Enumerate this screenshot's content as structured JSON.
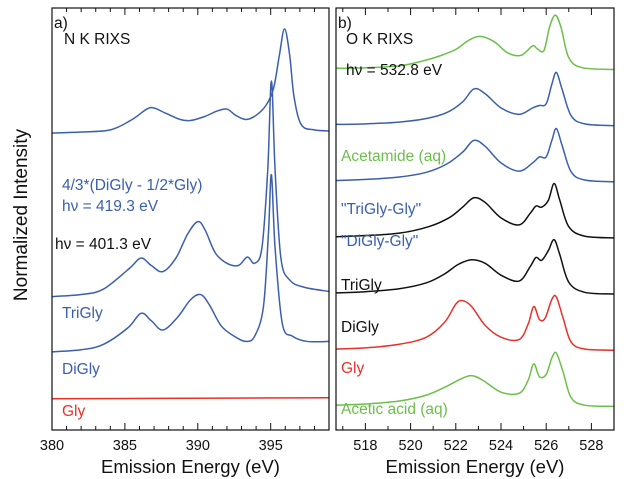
{
  "figure": {
    "ylabel": "Normalized Intensity"
  },
  "chart_data": [
    {
      "type": "line",
      "panel_label": "a)",
      "title_lines": [
        "N K RIXS"
      ],
      "xlabel": "Emission Energy (eV)",
      "xlim": [
        380,
        399
      ],
      "xticks": [
        "380",
        "385",
        "390",
        "395"
      ],
      "xtick_values": [
        380,
        385,
        390,
        395
      ],
      "y_ticks_shown": false,
      "grid": false,
      "series": [
        {
          "name": "4/3*(DiGly - 1/2*Gly)",
          "color": "#3b5fad",
          "excitation": "hν = 419.3 eV",
          "label_lines": [
            "4/3*(DiGly - 1/2*Gly)",
            "hν = 419.3 eV"
          ],
          "baseline": 3.55,
          "points": [
            [
              380,
              3.55
            ],
            [
              382,
              3.56
            ],
            [
              384,
              3.58
            ],
            [
              385.5,
              3.68
            ],
            [
              386.5,
              3.78
            ],
            [
              387,
              3.79
            ],
            [
              387.8,
              3.74
            ],
            [
              388.8,
              3.68
            ],
            [
              389.5,
              3.67
            ],
            [
              390.5,
              3.71
            ],
            [
              391.3,
              3.76
            ],
            [
              392,
              3.78
            ],
            [
              392.6,
              3.72
            ],
            [
              393.3,
              3.68
            ],
            [
              394,
              3.72
            ],
            [
              394.7,
              3.82
            ],
            [
              395.2,
              3.98
            ],
            [
              395.6,
              4.3
            ],
            [
              395.95,
              4.55
            ],
            [
              396.3,
              4.3
            ],
            [
              396.6,
              3.9
            ],
            [
              397.1,
              3.63
            ],
            [
              398,
              3.58
            ],
            [
              399,
              3.57
            ]
          ]
        },
        {
          "name": "TriGly",
          "color": "#3b5fad",
          "label_lines": [
            "TriGly"
          ],
          "excitation_note": "hν = 401.3 eV",
          "baseline": 1.98,
          "points": [
            [
              380,
              1.98
            ],
            [
              382,
              2.0
            ],
            [
              383.5,
              2.05
            ],
            [
              385.3,
              2.25
            ],
            [
              386.1,
              2.35
            ],
            [
              386.8,
              2.28
            ],
            [
              387.6,
              2.22
            ],
            [
              388.5,
              2.35
            ],
            [
              389.3,
              2.58
            ],
            [
              390,
              2.7
            ],
            [
              390.5,
              2.62
            ],
            [
              391.2,
              2.4
            ],
            [
              392,
              2.3
            ],
            [
              392.8,
              2.28
            ],
            [
              393.4,
              2.36
            ],
            [
              393.9,
              2.3
            ],
            [
              394.4,
              2.45
            ],
            [
              394.8,
              3.2
            ],
            [
              395.05,
              4.05
            ],
            [
              395.3,
              3.2
            ],
            [
              395.7,
              2.35
            ],
            [
              396.3,
              2.14
            ],
            [
              397.3,
              2.07
            ],
            [
              399,
              2.03
            ]
          ]
        },
        {
          "name": "DiGly",
          "color": "#3b5fad",
          "label_lines": [
            "DiGly"
          ],
          "baseline": 1.45,
          "points": [
            [
              380,
              1.45
            ],
            [
              382,
              1.47
            ],
            [
              383.5,
              1.52
            ],
            [
              385.2,
              1.68
            ],
            [
              386.1,
              1.82
            ],
            [
              386.8,
              1.75
            ],
            [
              387.6,
              1.66
            ],
            [
              388.6,
              1.78
            ],
            [
              389.5,
              1.95
            ],
            [
              390.2,
              2.0
            ],
            [
              390.8,
              1.9
            ],
            [
              391.6,
              1.7
            ],
            [
              392.5,
              1.6
            ],
            [
              393.3,
              1.55
            ],
            [
              393.9,
              1.6
            ],
            [
              394.5,
              1.88
            ],
            [
              394.85,
              2.6
            ],
            [
              395.05,
              3.15
            ],
            [
              395.3,
              2.45
            ],
            [
              395.8,
              1.72
            ],
            [
              396.5,
              1.6
            ],
            [
              397.5,
              1.55
            ],
            [
              399,
              1.55
            ]
          ]
        },
        {
          "name": "Gly",
          "color": "#e8312a",
          "label_lines": [
            "Gly"
          ],
          "baseline": 1.0,
          "points": [
            [
              380,
              1.0
            ],
            [
              399,
              1.01
            ]
          ]
        }
      ]
    },
    {
      "type": "line",
      "panel_label": "b)",
      "title_lines": [
        "O K RIXS",
        "hν = 532.8 eV"
      ],
      "xlabel": "Emission Energy (eV)",
      "xlim": [
        516.7,
        529
      ],
      "xticks": [
        "518",
        "520",
        "522",
        "524",
        "526",
        "528"
      ],
      "xtick_values": [
        518,
        520,
        522,
        524,
        526,
        528
      ],
      "y_ticks_shown": false,
      "grid": false,
      "series": [
        {
          "name": "Acetamide (aq)",
          "color": "#6cbf4a",
          "label_lines": [
            "Acetamide (aq)"
          ],
          "points": [
            [
              516.7,
              0.1
            ],
            [
              518,
              0.11
            ],
            [
              519.5,
              0.14
            ],
            [
              520.5,
              0.22
            ],
            [
              521.3,
              0.31
            ],
            [
              522,
              0.42
            ],
            [
              522.6,
              0.58
            ],
            [
              523.1,
              0.64
            ],
            [
              523.7,
              0.55
            ],
            [
              524.3,
              0.36
            ],
            [
              524.9,
              0.32
            ],
            [
              525.4,
              0.48
            ],
            [
              525.6,
              0.43
            ],
            [
              525.9,
              0.4
            ],
            [
              526.15,
              0.8
            ],
            [
              526.4,
              1.0
            ],
            [
              526.65,
              0.8
            ],
            [
              527,
              0.28
            ],
            [
              527.6,
              0.11
            ],
            [
              529,
              0.08
            ]
          ]
        },
        {
          "name": "\"TriGly-Gly\"",
          "color": "#3b5fad",
          "label_lines": [
            "\"TriGly-Gly\""
          ],
          "points": [
            [
              516.7,
              0.1
            ],
            [
              518,
              0.11
            ],
            [
              519.5,
              0.14
            ],
            [
              520.7,
              0.2
            ],
            [
              521.6,
              0.3
            ],
            [
              522.3,
              0.48
            ],
            [
              522.8,
              0.7
            ],
            [
              523.3,
              0.62
            ],
            [
              524,
              0.38
            ],
            [
              524.8,
              0.27
            ],
            [
              525.4,
              0.38
            ],
            [
              525.7,
              0.42
            ],
            [
              526,
              0.45
            ],
            [
              526.25,
              0.78
            ],
            [
              526.45,
              0.98
            ],
            [
              526.7,
              0.7
            ],
            [
              527.1,
              0.25
            ],
            [
              527.7,
              0.11
            ],
            [
              529,
              0.08
            ]
          ]
        },
        {
          "name": "\"DiGly-Gly\"",
          "color": "#3b5fad",
          "label_lines": [
            "\"DiGly-Gly\""
          ],
          "points": [
            [
              516.7,
              0.1
            ],
            [
              518,
              0.12
            ],
            [
              519.5,
              0.16
            ],
            [
              520.7,
              0.24
            ],
            [
              521.6,
              0.38
            ],
            [
              522.3,
              0.58
            ],
            [
              522.8,
              0.78
            ],
            [
              523.3,
              0.68
            ],
            [
              524,
              0.4
            ],
            [
              524.8,
              0.26
            ],
            [
              525.4,
              0.4
            ],
            [
              525.7,
              0.5
            ],
            [
              526,
              0.5
            ],
            [
              526.25,
              0.78
            ],
            [
              526.45,
              0.98
            ],
            [
              526.7,
              0.7
            ],
            [
              527.1,
              0.25
            ],
            [
              527.7,
              0.11
            ],
            [
              529,
              0.08
            ]
          ]
        },
        {
          "name": "TriGly",
          "color": "#111111",
          "label_lines": [
            "TriGly"
          ],
          "points": [
            [
              516.7,
              0.1
            ],
            [
              518,
              0.12
            ],
            [
              519.5,
              0.16
            ],
            [
              520.8,
              0.27
            ],
            [
              521.7,
              0.42
            ],
            [
              522.3,
              0.6
            ],
            [
              522.8,
              0.76
            ],
            [
              523.3,
              0.68
            ],
            [
              524,
              0.42
            ],
            [
              524.8,
              0.3
            ],
            [
              525.3,
              0.5
            ],
            [
              525.55,
              0.62
            ],
            [
              525.8,
              0.6
            ],
            [
              526.1,
              0.72
            ],
            [
              526.35,
              1.0
            ],
            [
              526.6,
              0.72
            ],
            [
              527,
              0.27
            ],
            [
              527.7,
              0.11
            ],
            [
              529,
              0.08
            ]
          ]
        },
        {
          "name": "DiGly",
          "color": "#111111",
          "label_lines": [
            "DiGly"
          ],
          "points": [
            [
              516.7,
              0.1
            ],
            [
              518,
              0.12
            ],
            [
              519.5,
              0.17
            ],
            [
              520.7,
              0.27
            ],
            [
              521.5,
              0.42
            ],
            [
              522.1,
              0.58
            ],
            [
              522.7,
              0.66
            ],
            [
              523.3,
              0.6
            ],
            [
              524,
              0.4
            ],
            [
              524.8,
              0.3
            ],
            [
              525.3,
              0.55
            ],
            [
              525.55,
              0.7
            ],
            [
              525.8,
              0.65
            ],
            [
              526.1,
              0.82
            ],
            [
              526.35,
              1.0
            ],
            [
              526.6,
              0.75
            ],
            [
              527,
              0.28
            ],
            [
              527.7,
              0.11
            ],
            [
              529,
              0.08
            ]
          ]
        },
        {
          "name": "Gly",
          "color": "#e8312a",
          "label_lines": [
            "Gly"
          ],
          "points": [
            [
              516.7,
              0.1
            ],
            [
              518,
              0.12
            ],
            [
              519.5,
              0.18
            ],
            [
              520.7,
              0.3
            ],
            [
              521.5,
              0.55
            ],
            [
              522,
              0.86
            ],
            [
              522.3,
              0.92
            ],
            [
              522.7,
              0.82
            ],
            [
              523.3,
              0.5
            ],
            [
              524,
              0.3
            ],
            [
              524.8,
              0.26
            ],
            [
              525.2,
              0.52
            ],
            [
              525.45,
              0.82
            ],
            [
              525.7,
              0.6
            ],
            [
              525.95,
              0.62
            ],
            [
              526.25,
              0.94
            ],
            [
              526.45,
              0.98
            ],
            [
              526.75,
              0.62
            ],
            [
              527.1,
              0.22
            ],
            [
              527.7,
              0.1
            ],
            [
              529,
              0.08
            ]
          ]
        },
        {
          "name": "Acetic acid (aq)",
          "color": "#6cbf4a",
          "label_lines": [
            "Acetic acid (aq)"
          ],
          "points": [
            [
              516.7,
              0.1
            ],
            [
              518,
              0.12
            ],
            [
              519.5,
              0.17
            ],
            [
              520.7,
              0.27
            ],
            [
              521.6,
              0.42
            ],
            [
              522.2,
              0.54
            ],
            [
              522.7,
              0.6
            ],
            [
              523.2,
              0.52
            ],
            [
              524,
              0.32
            ],
            [
              524.8,
              0.3
            ],
            [
              525.2,
              0.52
            ],
            [
              525.45,
              0.8
            ],
            [
              525.7,
              0.58
            ],
            [
              526,
              0.62
            ],
            [
              526.25,
              0.9
            ],
            [
              526.45,
              0.98
            ],
            [
              526.75,
              0.66
            ],
            [
              527.1,
              0.23
            ],
            [
              527.7,
              0.1
            ],
            [
              529,
              0.08
            ]
          ]
        }
      ]
    }
  ]
}
